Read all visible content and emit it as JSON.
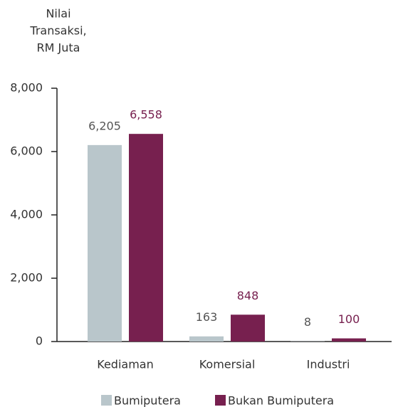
{
  "chart_data": {
    "type": "bar",
    "ylabel": [
      "Nilai",
      "Transaksi,",
      "RM Juta"
    ],
    "categories": [
      "Kediaman",
      "Komersial",
      "Industri"
    ],
    "series": [
      {
        "name": "Bumiputera",
        "color": "#b9c6cb",
        "label_color": "#555555",
        "values": [
          6205,
          163,
          8
        ],
        "value_labels": [
          "6,205",
          "163",
          "8"
        ]
      },
      {
        "name": "Bukan Bumiputera",
        "color": "#77204f",
        "label_color": "#77204f",
        "values": [
          6558,
          848,
          100
        ],
        "value_labels": [
          "6,558",
          "848",
          "100"
        ]
      }
    ],
    "ylim": [
      0,
      8000
    ],
    "yticks": [
      0,
      {
        "value": 2000,
        "label": "2,000"
      },
      {
        "value": 4000,
        "label": "4,000"
      },
      {
        "value": 6000,
        "label": "6,000"
      },
      {
        "value": 8000,
        "label": "8,000"
      }
    ]
  }
}
